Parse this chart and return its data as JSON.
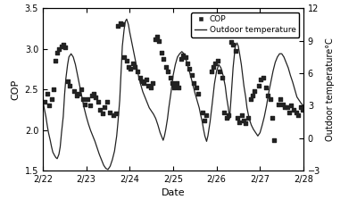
{
  "xlabel": "Date",
  "ylabel_left": "COP",
  "ylabel_right": "Outdoor temperature°C",
  "xlim": [
    0,
    6
  ],
  "ylim_left": [
    1.5,
    3.5
  ],
  "ylim_right": [
    -3,
    12
  ],
  "yticks_left": [
    1.5,
    2.0,
    2.5,
    3.0,
    3.5
  ],
  "yticks_right": [
    -3,
    0,
    3,
    6,
    9,
    12
  ],
  "xtick_labels": [
    "2/22",
    "2/23",
    "2/24",
    "2/25",
    "2/26",
    "2/27",
    "2/28"
  ],
  "xtick_positions": [
    0,
    1,
    2,
    3,
    4,
    5,
    6
  ],
  "cop_scatter": [
    [
      0.05,
      2.35
    ],
    [
      0.1,
      2.45
    ],
    [
      0.15,
      2.3
    ],
    [
      0.2,
      2.38
    ],
    [
      0.25,
      2.5
    ],
    [
      0.28,
      2.85
    ],
    [
      0.33,
      2.95
    ],
    [
      0.38,
      3.0
    ],
    [
      0.43,
      3.03
    ],
    [
      0.48,
      3.05
    ],
    [
      0.52,
      3.02
    ],
    [
      0.58,
      2.6
    ],
    [
      0.62,
      2.55
    ],
    [
      0.72,
      2.48
    ],
    [
      0.78,
      2.42
    ],
    [
      0.82,
      2.45
    ],
    [
      0.88,
      2.5
    ],
    [
      0.93,
      2.38
    ],
    [
      0.97,
      2.32
    ],
    [
      1.02,
      2.38
    ],
    [
      1.08,
      2.3
    ],
    [
      1.13,
      2.42
    ],
    [
      1.18,
      2.45
    ],
    [
      1.22,
      2.4
    ],
    [
      1.28,
      2.35
    ],
    [
      1.32,
      2.25
    ],
    [
      1.38,
      2.2
    ],
    [
      1.42,
      2.28
    ],
    [
      1.48,
      2.35
    ],
    [
      1.55,
      2.22
    ],
    [
      1.62,
      2.18
    ],
    [
      1.68,
      2.2
    ],
    [
      1.73,
      3.28
    ],
    [
      1.78,
      3.32
    ],
    [
      1.82,
      3.3
    ],
    [
      1.88,
      2.9
    ],
    [
      1.93,
      2.85
    ],
    [
      1.97,
      2.78
    ],
    [
      2.02,
      2.75
    ],
    [
      2.07,
      2.82
    ],
    [
      2.12,
      2.78
    ],
    [
      2.18,
      2.72
    ],
    [
      2.23,
      2.65
    ],
    [
      2.28,
      2.6
    ],
    [
      2.33,
      2.58
    ],
    [
      2.38,
      2.62
    ],
    [
      2.43,
      2.55
    ],
    [
      2.48,
      2.52
    ],
    [
      2.52,
      2.58
    ],
    [
      2.58,
      3.12
    ],
    [
      2.63,
      3.15
    ],
    [
      2.67,
      3.1
    ],
    [
      2.73,
      2.95
    ],
    [
      2.78,
      2.88
    ],
    [
      2.83,
      2.78
    ],
    [
      2.88,
      2.72
    ],
    [
      2.93,
      2.65
    ],
    [
      2.97,
      2.58
    ],
    [
      3.03,
      2.52
    ],
    [
      3.08,
      2.58
    ],
    [
      3.13,
      2.52
    ],
    [
      3.18,
      2.88
    ],
    [
      3.23,
      2.92
    ],
    [
      3.28,
      2.9
    ],
    [
      3.33,
      2.82
    ],
    [
      3.38,
      2.75
    ],
    [
      3.43,
      2.68
    ],
    [
      3.48,
      2.58
    ],
    [
      3.53,
      2.52
    ],
    [
      3.58,
      2.45
    ],
    [
      3.67,
      2.22
    ],
    [
      3.72,
      2.12
    ],
    [
      3.77,
      2.18
    ],
    [
      3.88,
      2.72
    ],
    [
      3.93,
      2.78
    ],
    [
      3.97,
      2.82
    ],
    [
      4.02,
      2.85
    ],
    [
      4.07,
      2.72
    ],
    [
      4.13,
      2.65
    ],
    [
      4.18,
      2.22
    ],
    [
      4.23,
      2.15
    ],
    [
      4.28,
      2.18
    ],
    [
      4.33,
      3.08
    ],
    [
      4.38,
      3.05
    ],
    [
      4.43,
      2.98
    ],
    [
      4.48,
      2.15
    ],
    [
      4.53,
      2.1
    ],
    [
      4.58,
      2.18
    ],
    [
      4.62,
      2.12
    ],
    [
      4.67,
      2.08
    ],
    [
      4.73,
      2.15
    ],
    [
      4.78,
      2.38
    ],
    [
      4.83,
      2.42
    ],
    [
      4.88,
      2.48
    ],
    [
      4.97,
      2.55
    ],
    [
      5.02,
      2.62
    ],
    [
      5.08,
      2.65
    ],
    [
      5.13,
      2.52
    ],
    [
      5.18,
      2.42
    ],
    [
      5.23,
      2.38
    ],
    [
      5.28,
      2.15
    ],
    [
      5.33,
      1.88
    ],
    [
      5.42,
      2.32
    ],
    [
      5.47,
      2.38
    ],
    [
      5.52,
      2.32
    ],
    [
      5.57,
      2.28
    ],
    [
      5.63,
      2.28
    ],
    [
      5.68,
      2.22
    ],
    [
      5.72,
      2.3
    ],
    [
      5.78,
      2.25
    ],
    [
      5.83,
      2.22
    ],
    [
      5.88,
      2.18
    ],
    [
      5.93,
      2.28
    ],
    [
      5.98,
      2.25
    ]
  ],
  "outdoor_temp_x": [
    0.0,
    0.03,
    0.07,
    0.1,
    0.13,
    0.17,
    0.2,
    0.23,
    0.27,
    0.3,
    0.33,
    0.37,
    0.4,
    0.43,
    0.47,
    0.5,
    0.53,
    0.57,
    0.6,
    0.65,
    0.7,
    0.75,
    0.8,
    0.85,
    0.9,
    0.95,
    1.0,
    1.05,
    1.1,
    1.15,
    1.2,
    1.25,
    1.3,
    1.35,
    1.4,
    1.45,
    1.5,
    1.55,
    1.6,
    1.65,
    1.7,
    1.73,
    1.77,
    1.8,
    1.83,
    1.87,
    1.9,
    1.93,
    1.97,
    2.0,
    2.05,
    2.1,
    2.15,
    2.2,
    2.25,
    2.3,
    2.35,
    2.4,
    2.45,
    2.5,
    2.55,
    2.6,
    2.65,
    2.7,
    2.73,
    2.77,
    2.8,
    2.83,
    2.87,
    2.9,
    2.95,
    3.0,
    3.05,
    3.1,
    3.15,
    3.2,
    3.25,
    3.3,
    3.35,
    3.4,
    3.45,
    3.5,
    3.55,
    3.6,
    3.63,
    3.67,
    3.7,
    3.73,
    3.77,
    3.8,
    3.85,
    3.9,
    3.95,
    4.0,
    4.05,
    4.1,
    4.15,
    4.2,
    4.23,
    4.27,
    4.3,
    4.33,
    4.38,
    4.43,
    4.47,
    4.5,
    4.53,
    4.57,
    4.6,
    4.63,
    4.67,
    4.7,
    4.75,
    4.8,
    4.85,
    4.9,
    4.95,
    5.0,
    5.05,
    5.1,
    5.15,
    5.2,
    5.25,
    5.3,
    5.35,
    5.4,
    5.45,
    5.5,
    5.55,
    5.6,
    5.65,
    5.7,
    5.75,
    5.8,
    5.85,
    5.9,
    5.95,
    6.0
  ],
  "outdoor_temp_y": [
    3.5,
    2.8,
    2.0,
    1.2,
    0.5,
    -0.2,
    -0.8,
    -1.3,
    -1.6,
    -1.8,
    -1.9,
    -1.5,
    -0.8,
    0.5,
    2.0,
    4.0,
    5.5,
    6.8,
    7.5,
    7.8,
    7.5,
    6.8,
    5.8,
    4.8,
    3.8,
    2.8,
    2.0,
    1.3,
    0.7,
    0.2,
    -0.3,
    -0.9,
    -1.5,
    -2.0,
    -2.5,
    -2.8,
    -2.9,
    -2.6,
    -2.0,
    -1.2,
    0.2,
    1.5,
    3.5,
    6.0,
    8.5,
    10.0,
    10.8,
    11.0,
    10.5,
    9.8,
    8.8,
    7.8,
    6.8,
    5.8,
    5.0,
    4.3,
    3.8,
    3.3,
    2.8,
    2.5,
    2.2,
    1.8,
    1.2,
    0.5,
    0.2,
    -0.2,
    0.2,
    0.8,
    1.8,
    2.8,
    4.2,
    5.8,
    6.8,
    7.5,
    7.8,
    8.0,
    7.8,
    7.2,
    6.5,
    5.8,
    5.0,
    4.2,
    3.5,
    2.8,
    2.2,
    1.5,
    0.8,
    0.2,
    -0.3,
    0.2,
    1.5,
    3.2,
    5.0,
    6.2,
    6.8,
    6.5,
    5.8,
    4.8,
    3.8,
    2.8,
    1.8,
    3.5,
    6.5,
    8.5,
    8.8,
    8.5,
    7.8,
    6.8,
    5.8,
    4.8,
    3.8,
    2.8,
    1.8,
    1.2,
    0.8,
    0.5,
    0.2,
    0.5,
    1.2,
    2.0,
    3.0,
    4.2,
    5.2,
    6.2,
    7.0,
    7.5,
    7.8,
    7.8,
    7.5,
    7.0,
    6.5,
    5.8,
    5.2,
    4.5,
    3.8,
    3.5,
    3.2,
    3.0
  ],
  "scatter_color": "#222222",
  "line_color": "#222222",
  "bg_color": "white"
}
